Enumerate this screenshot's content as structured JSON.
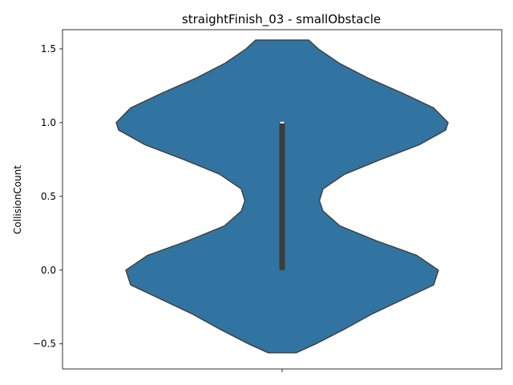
{
  "chart_data": {
    "type": "violin",
    "title": "straightFinish_03 - smallObstacle",
    "xlabel": "",
    "ylabel": "CollisionCount",
    "ylim": [
      -0.67,
      1.63
    ],
    "yticks": [
      -0.5,
      0.0,
      0.5,
      1.0,
      1.5
    ],
    "ytick_labels": [
      "−0.5",
      "0.0",
      "0.5",
      "1.0",
      "1.5"
    ],
    "xticks": [
      ""
    ],
    "grid": false,
    "colors": {
      "violin_fill": "#3274a1",
      "violin_edge": "#3d3d3d",
      "box": "#3d3d3d",
      "median": "#ffffff"
    },
    "violin": {
      "density_profile": [
        {
          "y": -0.56,
          "half_width": 0.058
        },
        {
          "y": -0.5,
          "half_width": 0.14
        },
        {
          "y": -0.4,
          "half_width": 0.26
        },
        {
          "y": -0.3,
          "half_width": 0.37
        },
        {
          "y": -0.2,
          "half_width": 0.5
        },
        {
          "y": -0.1,
          "half_width": 0.63
        },
        {
          "y": 0.0,
          "half_width": 0.65
        },
        {
          "y": 0.1,
          "half_width": 0.56
        },
        {
          "y": 0.2,
          "half_width": 0.39
        },
        {
          "y": 0.3,
          "half_width": 0.24
        },
        {
          "y": 0.4,
          "half_width": 0.17
        },
        {
          "y": 0.47,
          "half_width": 0.155
        },
        {
          "y": 0.55,
          "half_width": 0.17
        },
        {
          "y": 0.65,
          "half_width": 0.26
        },
        {
          "y": 0.75,
          "half_width": 0.41
        },
        {
          "y": 0.85,
          "half_width": 0.57
        },
        {
          "y": 0.95,
          "half_width": 0.68
        },
        {
          "y": 1.0,
          "half_width": 0.69
        },
        {
          "y": 1.1,
          "half_width": 0.63
        },
        {
          "y": 1.2,
          "half_width": 0.5
        },
        {
          "y": 1.3,
          "half_width": 0.36
        },
        {
          "y": 1.4,
          "half_width": 0.24
        },
        {
          "y": 1.5,
          "half_width": 0.15
        },
        {
          "y": 1.56,
          "half_width": 0.11
        }
      ],
      "quartile_box": {
        "q1": 0.0,
        "q3": 1.0
      },
      "whiskers": [
        0.0,
        1.0
      ],
      "median": 1.0
    }
  }
}
